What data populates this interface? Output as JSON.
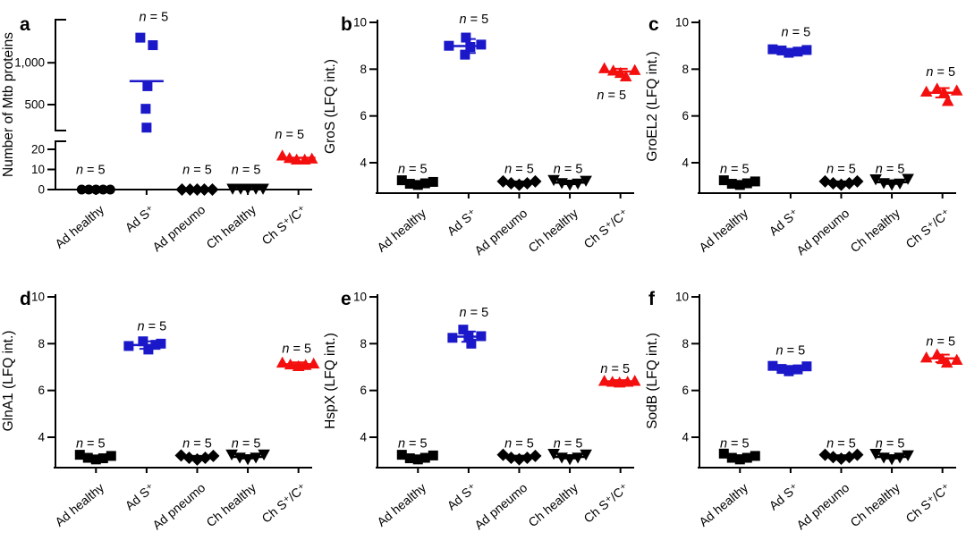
{
  "figure": {
    "description": "Six dot plots (a-f) of Mtb protein detection across five donor groups",
    "categories": [
      "Ad healthy",
      "Ad S⁺",
      "Ad pneumo",
      "Ch healthy",
      "Ch S⁺/C⁺"
    ],
    "n_label": {
      "italic": "n",
      "rest": " = 5"
    },
    "colors": {
      "black": "#000000",
      "blue": "#1a18c8",
      "red": "#f40f0f",
      "axis": "#000000"
    }
  },
  "chart_data": [
    {
      "type": "scatter-broken-axis",
      "letter": "a",
      "ylabel": "Number of Mtb proteins",
      "segments": [
        {
          "domain": [
            190,
            1515
          ],
          "ticks": [
            {
              "v": 500,
              "t": "500"
            },
            {
              "v": 1000,
              "t": "1,000"
            }
          ]
        },
        {
          "domain": [
            0,
            24
          ],
          "ticks": [
            {
              "v": 0,
              "t": "0"
            },
            {
              "v": 10,
              "t": "10"
            },
            {
              "v": 20,
              "t": "20"
            }
          ]
        }
      ],
      "groups": [
        {
          "category": "Ad healthy",
          "marker": "circle",
          "color": "black",
          "segment": 1,
          "points": [
            [
              -16,
              0
            ],
            [
              -8,
              0
            ],
            [
              0,
              0
            ],
            [
              8,
              0
            ],
            [
              16,
              0
            ]
          ],
          "mean": 0,
          "err": null,
          "n_y": 10,
          "n_dx": -6
        },
        {
          "category": "Ad S⁺",
          "marker": "square",
          "color": "blue",
          "segment": 0,
          "points": [
            [
              -7,
              1300
            ],
            [
              7,
              1210
            ],
            [
              1,
              720
            ],
            [
              -1,
              450
            ],
            [
              0,
              225
            ]
          ],
          "mean": 780,
          "err": null,
          "n_y": 1555,
          "n_dx": 8
        },
        {
          "category": "Ad pneumo",
          "marker": "diamond",
          "color": "black",
          "segment": 1,
          "points": [
            [
              -17,
              0
            ],
            [
              -8,
              0
            ],
            [
              0,
              0
            ],
            [
              8,
              0
            ],
            [
              17,
              0
            ]
          ],
          "mean": 0,
          "err": null,
          "n_y": 10,
          "n_dx": 0
        },
        {
          "category": "Ch healthy",
          "marker": "tri-down",
          "color": "black",
          "segment": 1,
          "points": [
            [
              -17,
              0.3
            ],
            [
              -8,
              0.3
            ],
            [
              0,
              0.3
            ],
            [
              9,
              0.3
            ],
            [
              17,
              0.3
            ]
          ],
          "mean": 0.3,
          "err": null,
          "n_y": 10,
          "n_dx": -2
        },
        {
          "category": "Ch S⁺/C⁺",
          "marker": "tri-up",
          "color": "red",
          "segment": 1,
          "points": [
            [
              -18,
              17
            ],
            [
              -10,
              15.8
            ],
            [
              -2,
              15
            ],
            [
              7,
              15
            ],
            [
              15,
              15.5
            ]
          ],
          "mean": 15.8,
          "err": null,
          "n_y": 27.5,
          "n_dx": -10
        }
      ]
    },
    {
      "type": "scatter",
      "letter": "b",
      "ylabel": "GroS (LFQ int.)",
      "ydomain": [
        2.7,
        10.1
      ],
      "yticks": [
        4,
        6,
        8,
        10
      ],
      "groups": [
        {
          "category": "Ad healthy",
          "marker": "square",
          "color": "black",
          "points": [
            [
              -18,
              3.25
            ],
            [
              -9,
              3.1
            ],
            [
              0,
              3.05
            ],
            [
              8,
              3.12
            ],
            [
              17,
              3.18
            ]
          ],
          "mean": 3.14,
          "err": 0.07,
          "n_y": 3.75,
          "n_dx": -6
        },
        {
          "category": "Ad S⁺",
          "marker": "square",
          "color": "blue",
          "points": [
            [
              -22,
              9.0
            ],
            [
              -3,
              9.35
            ],
            [
              14,
              9.05
            ],
            [
              2,
              8.95
            ],
            [
              -4,
              8.62
            ]
          ],
          "mean": 8.99,
          "err": 0.3,
          "n_y": 10.15,
          "n_dx": 6
        },
        {
          "category": "Ad pneumo",
          "marker": "diamond",
          "color": "black",
          "points": [
            [
              -18,
              3.2
            ],
            [
              -9,
              3.12
            ],
            [
              0,
              3.06
            ],
            [
              9,
              3.12
            ],
            [
              18,
              3.2
            ]
          ],
          "mean": 3.14,
          "err": 0.06,
          "n_y": 3.75,
          "n_dx": 0
        },
        {
          "category": "Ch healthy",
          "marker": "tri-down",
          "color": "black",
          "points": [
            [
              -18,
              3.25
            ],
            [
              -9,
              3.12
            ],
            [
              0,
              3.05
            ],
            [
              9,
              3.1
            ],
            [
              18,
              3.22
            ]
          ],
          "mean": 3.15,
          "err": 0.07,
          "n_y": 3.75,
          "n_dx": -2
        },
        {
          "category": "Ch S⁺/C⁺",
          "marker": "tri-up",
          "color": "red",
          "points": [
            [
              -18,
              8.05
            ],
            [
              -8,
              7.95
            ],
            [
              0,
              7.85
            ],
            [
              6,
              7.7
            ],
            [
              16,
              7.97
            ]
          ],
          "mean": 7.9,
          "err": 0.12,
          "n_y": 6.9,
          "n_dx": -10
        }
      ]
    },
    {
      "type": "scatter",
      "letter": "c",
      "ylabel": "GroEL2 (LFQ int.)",
      "ydomain": [
        2.7,
        10.1
      ],
      "yticks": [
        4,
        6,
        8,
        10
      ],
      "groups": [
        {
          "category": "Ad healthy",
          "marker": "square",
          "color": "black",
          "points": [
            [
              -18,
              3.25
            ],
            [
              -9,
              3.1
            ],
            [
              0,
              3.05
            ],
            [
              8,
              3.12
            ],
            [
              17,
              3.2
            ]
          ],
          "mean": 3.14,
          "err": 0.07,
          "n_y": 3.75,
          "n_dx": -6
        },
        {
          "category": "Ad S⁺",
          "marker": "square",
          "color": "blue",
          "points": [
            [
              -20,
              8.85
            ],
            [
              -10,
              8.8
            ],
            [
              -2,
              8.7
            ],
            [
              8,
              8.75
            ],
            [
              18,
              8.82
            ]
          ],
          "mean": 8.78,
          "err": 0.07,
          "n_y": 9.6,
          "n_dx": 6
        },
        {
          "category": "Ad pneumo",
          "marker": "diamond",
          "color": "black",
          "points": [
            [
              -18,
              3.2
            ],
            [
              -9,
              3.12
            ],
            [
              0,
              3.06
            ],
            [
              9,
              3.12
            ],
            [
              18,
              3.2
            ]
          ],
          "mean": 3.14,
          "err": 0.06,
          "n_y": 3.75,
          "n_dx": 0
        },
        {
          "category": "Ch healthy",
          "marker": "tri-down",
          "color": "black",
          "points": [
            [
              -18,
              3.28
            ],
            [
              -9,
              3.12
            ],
            [
              0,
              3.05
            ],
            [
              9,
              3.1
            ],
            [
              18,
              3.3
            ]
          ],
          "mean": 3.17,
          "err": 0.08,
          "n_y": 3.75,
          "n_dx": -2
        },
        {
          "category": "Ch S⁺/C⁺",
          "marker": "tri-up",
          "color": "red",
          "points": [
            [
              -18,
              7.05
            ],
            [
              -6,
              7.18
            ],
            [
              2,
              7.0
            ],
            [
              6,
              6.65
            ],
            [
              16,
              7.1
            ]
          ],
          "mean": 6.99,
          "err": 0.2,
          "n_y": 7.9,
          "n_dx": -2
        }
      ]
    },
    {
      "type": "scatter",
      "letter": "d",
      "ylabel": "GlnA1 (LFQ int.)",
      "ydomain": [
        2.7,
        10.1
      ],
      "yticks": [
        4,
        6,
        8,
        10
      ],
      "groups": [
        {
          "category": "Ad healthy",
          "marker": "square",
          "color": "black",
          "points": [
            [
              -18,
              3.25
            ],
            [
              -9,
              3.12
            ],
            [
              0,
              3.05
            ],
            [
              8,
              3.1
            ],
            [
              17,
              3.2
            ]
          ],
          "mean": 3.14,
          "err": 0.07,
          "n_y": 3.75,
          "n_dx": -6
        },
        {
          "category": "Ad S⁺",
          "marker": "square",
          "color": "blue",
          "points": [
            [
              -20,
              7.9
            ],
            [
              -4,
              8.1
            ],
            [
              2,
              7.75
            ],
            [
              10,
              7.95
            ],
            [
              16,
              8.0
            ]
          ],
          "mean": 7.94,
          "err": 0.16,
          "n_y": 8.75,
          "n_dx": 6
        },
        {
          "category": "Ad pneumo",
          "marker": "diamond",
          "color": "black",
          "points": [
            [
              -18,
              3.22
            ],
            [
              -9,
              3.12
            ],
            [
              0,
              3.05
            ],
            [
              9,
              3.12
            ],
            [
              18,
              3.2
            ]
          ],
          "mean": 3.14,
          "err": 0.06,
          "n_y": 3.75,
          "n_dx": 0
        },
        {
          "category": "Ch healthy",
          "marker": "tri-down",
          "color": "black",
          "points": [
            [
              -18,
              3.25
            ],
            [
              -9,
              3.12
            ],
            [
              0,
              3.05
            ],
            [
              9,
              3.12
            ],
            [
              18,
              3.25
            ]
          ],
          "mean": 3.16,
          "err": 0.07,
          "n_y": 3.75,
          "n_dx": -2
        },
        {
          "category": "Ch S⁺/C⁺",
          "marker": "tri-up",
          "color": "red",
          "points": [
            [
              -18,
              7.2
            ],
            [
              -9,
              7.12
            ],
            [
              0,
              7.05
            ],
            [
              8,
              7.1
            ],
            [
              17,
              7.16
            ]
          ],
          "mean": 7.12,
          "err": 0.08,
          "n_y": 7.8,
          "n_dx": -2
        }
      ]
    },
    {
      "type": "scatter",
      "letter": "e",
      "ylabel": "HspX (LFQ int.)",
      "ydomain": [
        2.7,
        10.1
      ],
      "yticks": [
        4,
        6,
        8,
        10
      ],
      "groups": [
        {
          "category": "Ad healthy",
          "marker": "square",
          "color": "black",
          "points": [
            [
              -18,
              3.25
            ],
            [
              -9,
              3.1
            ],
            [
              0,
              3.05
            ],
            [
              8,
              3.12
            ],
            [
              17,
              3.22
            ]
          ],
          "mean": 3.15,
          "err": 0.07,
          "n_y": 3.75,
          "n_dx": -6
        },
        {
          "category": "Ad S⁺",
          "marker": "square",
          "color": "blue",
          "points": [
            [
              -18,
              8.25
            ],
            [
              -6,
              8.6
            ],
            [
              0,
              8.3
            ],
            [
              3,
              8.0
            ],
            [
              14,
              8.32
            ]
          ],
          "mean": 8.3,
          "err": 0.22,
          "n_y": 9.35,
          "n_dx": 6
        },
        {
          "category": "Ad pneumo",
          "marker": "diamond",
          "color": "black",
          "points": [
            [
              -18,
              3.25
            ],
            [
              -9,
              3.12
            ],
            [
              0,
              3.06
            ],
            [
              9,
              3.12
            ],
            [
              18,
              3.2
            ]
          ],
          "mean": 3.15,
          "err": 0.06,
          "n_y": 3.75,
          "n_dx": 0
        },
        {
          "category": "Ch healthy",
          "marker": "tri-down",
          "color": "black",
          "points": [
            [
              -18,
              3.28
            ],
            [
              -9,
              3.12
            ],
            [
              0,
              3.05
            ],
            [
              9,
              3.12
            ],
            [
              18,
              3.25
            ]
          ],
          "mean": 3.16,
          "err": 0.07,
          "n_y": 3.75,
          "n_dx": -2
        },
        {
          "category": "Ch S⁺/C⁺",
          "marker": "tri-up",
          "color": "red",
          "points": [
            [
              -18,
              6.42
            ],
            [
              -9,
              6.38
            ],
            [
              -1,
              6.35
            ],
            [
              8,
              6.38
            ],
            [
              16,
              6.42
            ]
          ],
          "mean": 6.39,
          "err": 0.05,
          "n_y": 6.95,
          "n_dx": -6
        }
      ]
    },
    {
      "type": "scatter",
      "letter": "f",
      "ylabel": "SodB (LFQ int.)",
      "ydomain": [
        2.7,
        10.1
      ],
      "yticks": [
        4,
        6,
        8,
        10
      ],
      "groups": [
        {
          "category": "Ad healthy",
          "marker": "square",
          "color": "black",
          "points": [
            [
              -18,
              3.3
            ],
            [
              -9,
              3.12
            ],
            [
              0,
              3.05
            ],
            [
              8,
              3.12
            ],
            [
              17,
              3.2
            ]
          ],
          "mean": 3.16,
          "err": 0.07,
          "n_y": 3.75,
          "n_dx": -6
        },
        {
          "category": "Ad S⁺",
          "marker": "square",
          "color": "blue",
          "points": [
            [
              -20,
              7.05
            ],
            [
              -10,
              6.92
            ],
            [
              -2,
              6.82
            ],
            [
              8,
              6.9
            ],
            [
              18,
              7.03
            ]
          ],
          "mean": 6.94,
          "err": 0.11,
          "n_y": 7.72,
          "n_dx": 0
        },
        {
          "category": "Ad pneumo",
          "marker": "diamond",
          "color": "black",
          "points": [
            [
              -18,
              3.25
            ],
            [
              -9,
              3.15
            ],
            [
              0,
              3.08
            ],
            [
              9,
              3.15
            ],
            [
              18,
              3.25
            ]
          ],
          "mean": 3.17,
          "err": 0.06,
          "n_y": 3.75,
          "n_dx": 0
        },
        {
          "category": "Ch healthy",
          "marker": "tri-down",
          "color": "black",
          "points": [
            [
              -18,
              3.28
            ],
            [
              -9,
              3.12
            ],
            [
              0,
              3.05
            ],
            [
              9,
              3.12
            ],
            [
              18,
              3.22
            ]
          ],
          "mean": 3.16,
          "err": 0.07,
          "n_y": 3.75,
          "n_dx": -2
        },
        {
          "category": "Ch S⁺/C⁺",
          "marker": "tri-up",
          "color": "red",
          "points": [
            [
              -18,
              7.42
            ],
            [
              -6,
              7.55
            ],
            [
              0,
              7.35
            ],
            [
              5,
              7.2
            ],
            [
              16,
              7.32
            ]
          ],
          "mean": 7.37,
          "err": 0.16,
          "n_y": 8.1,
          "n_dx": -2
        }
      ]
    }
  ]
}
